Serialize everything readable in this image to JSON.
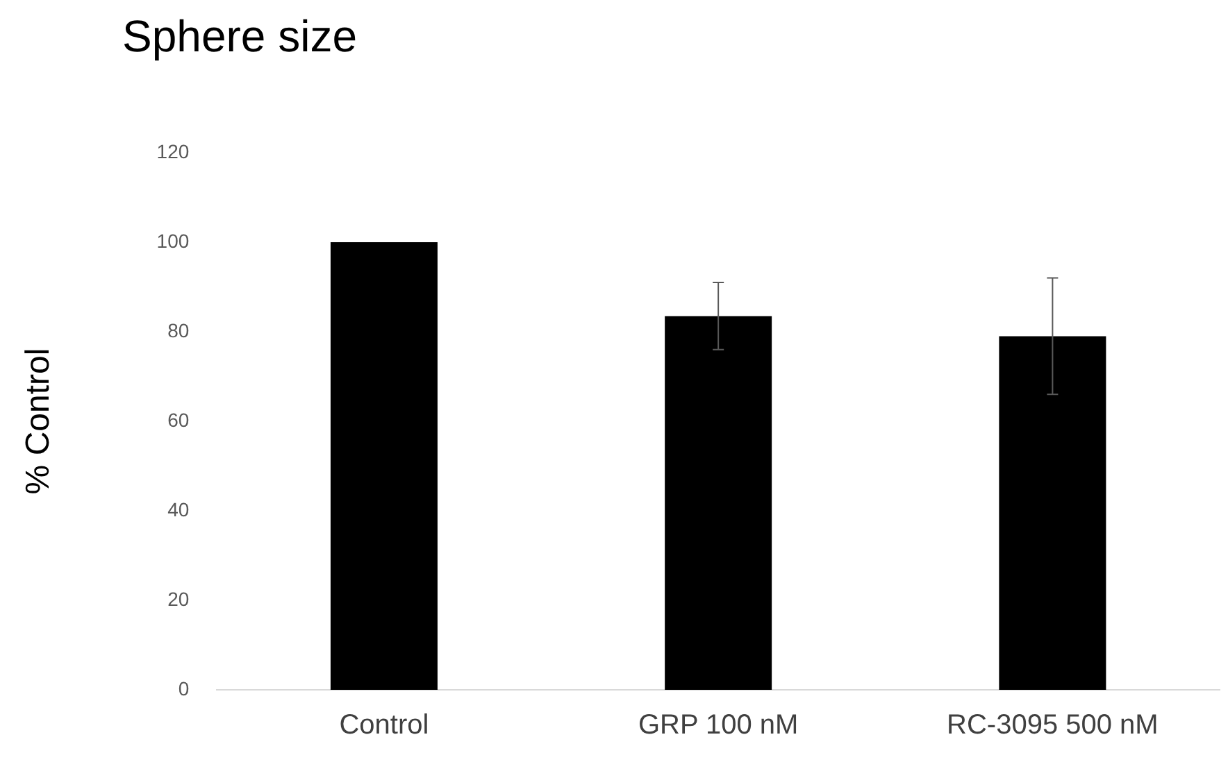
{
  "chart_data": {
    "type": "bar",
    "title": "Sphere size",
    "ylabel": "% Control",
    "categories": [
      "Control",
      "GRP 100 nM",
      "RC-3095 500 nM"
    ],
    "values": [
      100,
      83.5,
      79
    ],
    "errors": [
      null,
      7.5,
      13
    ],
    "color": "#000000",
    "ylim": [
      0,
      120
    ],
    "yticks": [
      0,
      20,
      40,
      60,
      80,
      100,
      120
    ],
    "grid": false,
    "legend": false
  }
}
